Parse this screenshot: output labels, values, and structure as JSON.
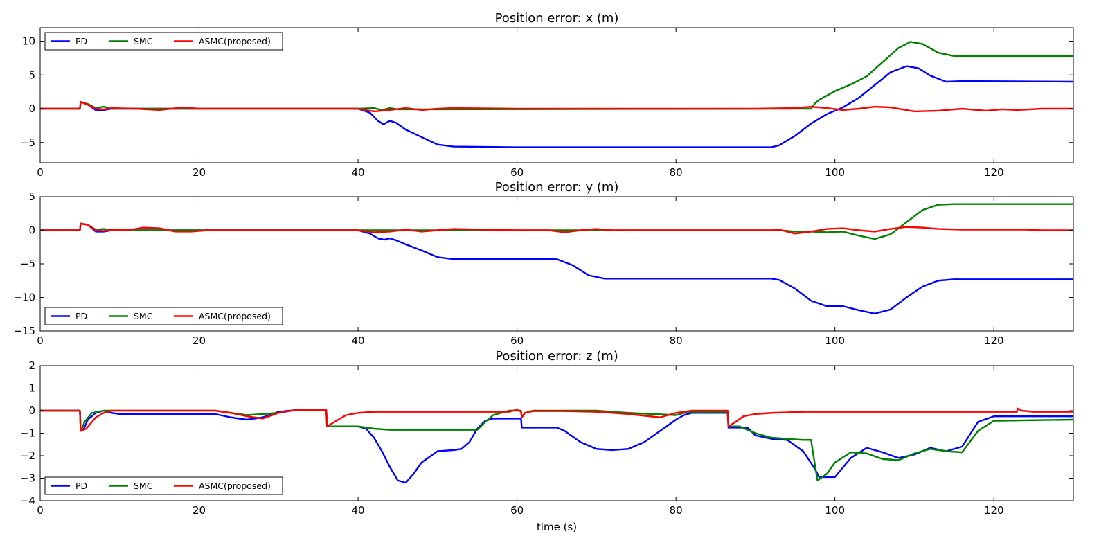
{
  "chart_data": [
    {
      "type": "line",
      "title": "Position error: x (m)",
      "xlabel": "",
      "ylabel": "",
      "xlim": [
        0,
        130
      ],
      "ylim": [
        -8,
        12
      ],
      "xticks": [
        0,
        20,
        40,
        60,
        80,
        100,
        120
      ],
      "yticks": [
        -5,
        0,
        5,
        10
      ],
      "ytick_labels": [
        "−5",
        "0",
        "5",
        "10"
      ],
      "legend": "top-left",
      "series": [
        {
          "name": "PD",
          "color": "#0000ff",
          "x": [
            0,
            5,
            5.1,
            6,
            7,
            8,
            9,
            40,
            41.5,
            42.5,
            43.2,
            44,
            44.8,
            46,
            48,
            50,
            52,
            60,
            80,
            92,
            93,
            95,
            97,
            99,
            101,
            103,
            105,
            107,
            109,
            110.5,
            112,
            114,
            116,
            130
          ],
          "y": [
            0,
            0,
            1,
            0.6,
            -0.2,
            -0.2,
            0,
            0,
            -0.6,
            -1.8,
            -2.3,
            -1.8,
            -2.1,
            -3.1,
            -4.2,
            -5.3,
            -5.6,
            -5.7,
            -5.7,
            -5.7,
            -5.4,
            -4,
            -2.2,
            -0.8,
            0.2,
            1.6,
            3.5,
            5.4,
            6.3,
            6,
            4.9,
            4,
            4.1,
            4
          ]
        },
        {
          "name": "SMC",
          "color": "#008000",
          "x": [
            0,
            5,
            5.1,
            6,
            7,
            8,
            9,
            40,
            42,
            43,
            44,
            45,
            97,
            97.5,
            98,
            100,
            102,
            104,
            106,
            108,
            109.5,
            111,
            113,
            115,
            130
          ],
          "y": [
            0,
            0,
            1,
            0.7,
            0.1,
            0.3,
            0,
            0,
            0.1,
            -0.2,
            0.1,
            -0.1,
            0,
            0.8,
            1.3,
            2.6,
            3.6,
            4.8,
            6.9,
            9,
            9.9,
            9.6,
            8.3,
            7.8,
            7.8
          ]
        },
        {
          "name": "ASMC(proposed)",
          "color": "#ff0000",
          "x": [
            0,
            5,
            5.1,
            6,
            7,
            8,
            9,
            12,
            15,
            18,
            20,
            22,
            40,
            42,
            44,
            46,
            48,
            50,
            52,
            60,
            80,
            90,
            95,
            97,
            99,
            101,
            103,
            105,
            107,
            110,
            113,
            116,
            119,
            121,
            123,
            126,
            130
          ],
          "y": [
            0,
            0,
            1,
            0.6,
            0,
            -0.1,
            0.1,
            0,
            -0.2,
            0.2,
            0,
            0,
            0,
            -0.4,
            -0.2,
            0.1,
            -0.2,
            0,
            0.1,
            0,
            0,
            0,
            0.1,
            0.3,
            0.1,
            -0.2,
            0,
            0.3,
            0.2,
            -0.4,
            -0.3,
            0,
            -0.3,
            -0.1,
            -0.2,
            0,
            0
          ]
        }
      ]
    },
    {
      "type": "line",
      "title": "Position error: y (m)",
      "xlabel": "",
      "ylabel": "",
      "xlim": [
        0,
        130
      ],
      "ylim": [
        -15,
        5
      ],
      "xticks": [
        0,
        20,
        40,
        60,
        80,
        100,
        120
      ],
      "yticks": [
        -15,
        -10,
        -5,
        0,
        5
      ],
      "ytick_labels": [
        "−15",
        "−10",
        "−5",
        "0",
        "5"
      ],
      "legend": "bottom-left",
      "series": [
        {
          "name": "PD",
          "color": "#0000ff",
          "x": [
            0,
            5,
            5.1,
            6,
            7,
            8,
            9,
            40,
            41.5,
            42.5,
            43.3,
            44,
            44.8,
            46,
            48,
            50,
            52,
            60,
            65,
            67,
            69,
            71,
            80,
            92,
            93,
            95,
            97,
            99,
            101,
            103,
            105,
            107,
            109,
            111,
            113,
            115,
            130
          ],
          "y": [
            0,
            0,
            1,
            0.8,
            -0.2,
            -0.2,
            0,
            0,
            -0.5,
            -1.2,
            -1.4,
            -1.2,
            -1.5,
            -2.1,
            -3,
            -4,
            -4.3,
            -4.3,
            -4.3,
            -5.2,
            -6.7,
            -7.2,
            -7.2,
            -7.2,
            -7.4,
            -8.7,
            -10.5,
            -11.3,
            -11.3,
            -11.9,
            -12.4,
            -11.8,
            -10,
            -8.4,
            -7.5,
            -7.3,
            -7.3
          ]
        },
        {
          "name": "SMC",
          "color": "#008000",
          "x": [
            0,
            5,
            5.1,
            6,
            7,
            8,
            9,
            93,
            95,
            97,
            99,
            101,
            103,
            105,
            107,
            109,
            111,
            113,
            115,
            130
          ],
          "y": [
            0,
            0,
            1,
            0.8,
            0.1,
            0.2,
            0,
            0,
            -0.2,
            -0.2,
            -0.3,
            -0.2,
            -0.8,
            -1.3,
            -0.6,
            1.2,
            3,
            3.8,
            3.9,
            3.9
          ]
        },
        {
          "name": "ASMC(proposed)",
          "color": "#ff0000",
          "x": [
            0,
            5,
            5.1,
            6,
            7,
            8,
            9,
            11,
            13,
            15,
            17,
            19,
            21,
            40,
            42,
            44,
            46,
            48,
            50,
            52,
            60,
            64,
            66,
            68,
            70,
            72,
            80,
            92,
            93,
            95,
            97,
            99,
            101,
            103,
            105,
            107,
            109,
            111,
            113,
            116,
            120,
            124,
            126,
            130
          ],
          "y": [
            0,
            0,
            1,
            0.8,
            0,
            -0.1,
            0.1,
            0,
            0.4,
            0.3,
            -0.2,
            -0.2,
            0,
            0,
            -0.3,
            -0.2,
            0.1,
            -0.2,
            0,
            0.2,
            0,
            0,
            -0.3,
            0,
            0.2,
            0,
            0,
            0,
            0.1,
            -0.5,
            -0.2,
            0.2,
            0.3,
            0,
            -0.2,
            0.2,
            0.5,
            0.4,
            0.2,
            0.1,
            0.1,
            0.1,
            0,
            0
          ]
        }
      ]
    },
    {
      "type": "line",
      "title": "Position error: z (m)",
      "xlabel": "time (s)",
      "ylabel": "",
      "xlim": [
        0,
        130
      ],
      "ylim": [
        -4,
        2
      ],
      "xticks": [
        0,
        20,
        40,
        60,
        80,
        100,
        120
      ],
      "yticks": [
        -4,
        -3,
        -2,
        -1,
        0,
        1,
        2
      ],
      "ytick_labels": [
        "−4",
        "−3",
        "−2",
        "−1",
        "0",
        "1",
        "2"
      ],
      "legend": "bottom-left",
      "series": [
        {
          "name": "PD",
          "color": "#0000ff",
          "x": [
            0,
            5,
            5.1,
            5.5,
            6,
            7,
            8,
            9,
            10,
            12,
            22,
            24,
            26,
            28,
            30,
            32,
            36,
            36.1,
            38,
            40,
            41,
            42,
            43,
            44,
            45,
            46,
            47,
            48,
            50,
            52,
            53,
            54,
            55,
            56,
            57,
            58,
            60,
            60.5,
            60.6,
            64,
            65,
            66,
            68,
            70,
            72,
            74,
            76,
            78,
            80,
            81,
            82,
            86.5,
            86.6,
            89,
            90,
            92,
            94,
            96,
            97.5,
            98,
            100,
            102,
            104,
            106,
            108,
            110,
            112,
            114,
            116,
            118,
            120,
            122,
            130
          ],
          "y": [
            0,
            0,
            -0.9,
            -0.8,
            -0.4,
            -0.1,
            0,
            -0.1,
            -0.15,
            -0.15,
            -0.15,
            -0.3,
            -0.4,
            -0.3,
            -0.05,
            0.02,
            0.02,
            -0.7,
            -0.7,
            -0.7,
            -0.8,
            -1.2,
            -1.8,
            -2.5,
            -3.1,
            -3.2,
            -2.8,
            -2.3,
            -1.8,
            -1.75,
            -1.7,
            -1.4,
            -0.8,
            -0.45,
            -0.35,
            -0.35,
            -0.35,
            -0.35,
            -0.75,
            -0.75,
            -0.75,
            -0.9,
            -1.4,
            -1.7,
            -1.75,
            -1.7,
            -1.4,
            -0.9,
            -0.4,
            -0.2,
            -0.1,
            -0.1,
            -0.75,
            -0.75,
            -1.1,
            -1.25,
            -1.3,
            -1.8,
            -2.6,
            -2.95,
            -2.95,
            -2.1,
            -1.65,
            -1.85,
            -2.1,
            -1.95,
            -1.65,
            -1.8,
            -1.6,
            -0.5,
            -0.25,
            -0.25,
            -0.25
          ]
        },
        {
          "name": "SMC",
          "color": "#008000",
          "x": [
            0,
            5,
            5.1,
            5.6,
            6.5,
            8,
            10,
            22,
            26,
            30,
            32,
            36,
            36.1,
            40,
            42,
            44,
            46,
            50,
            55,
            56,
            57,
            58,
            59,
            60.5,
            60.6,
            61,
            62,
            64,
            66,
            70,
            74,
            80,
            81,
            82,
            86.5,
            86.6,
            88,
            90,
            92,
            94,
            96,
            97,
            97.3,
            97.8,
            99,
            100,
            102,
            104,
            106,
            108,
            110,
            112,
            114,
            116,
            118,
            120,
            130
          ],
          "y": [
            0,
            0,
            -0.9,
            -0.5,
            -0.1,
            0,
            0,
            0,
            -0.2,
            -0.1,
            0.02,
            0.02,
            -0.7,
            -0.7,
            -0.8,
            -0.85,
            -0.85,
            -0.85,
            -0.85,
            -0.5,
            -0.2,
            -0.1,
            0,
            0,
            -0.3,
            -0.1,
            0,
            0,
            0,
            0,
            -0.1,
            -0.2,
            -0.1,
            -0.05,
            -0.05,
            -0.7,
            -0.7,
            -1,
            -1.2,
            -1.25,
            -1.3,
            -1.3,
            -2,
            -3.1,
            -2.8,
            -2.3,
            -1.85,
            -1.9,
            -2.15,
            -2.2,
            -1.9,
            -1.7,
            -1.8,
            -1.85,
            -0.9,
            -0.45,
            -0.4
          ]
        },
        {
          "name": "ASMC(proposed)",
          "color": "#ff0000",
          "x": [
            0,
            5,
            5.1,
            5.8,
            7,
            8,
            9,
            10,
            22,
            24,
            26,
            28,
            30,
            32,
            36,
            36.1,
            37.5,
            38.5,
            40,
            42,
            45,
            50,
            55,
            59,
            60,
            60.5,
            60.6,
            61,
            62,
            66,
            70,
            74,
            78,
            80,
            81,
            82,
            86.5,
            86.6,
            87.5,
            88.5,
            90,
            92,
            96,
            100,
            110,
            115,
            120,
            122.9,
            123,
            123.5,
            125,
            127,
            130
          ],
          "y": [
            0,
            0,
            -0.9,
            -0.8,
            -0.3,
            -0.1,
            0,
            0,
            0,
            -0.1,
            -0.25,
            -0.35,
            -0.1,
            0.02,
            0.02,
            -0.7,
            -0.4,
            -0.2,
            -0.1,
            -0.05,
            -0.05,
            -0.05,
            -0.05,
            -0.05,
            0.05,
            -0.05,
            -0.3,
            -0.1,
            -0.02,
            -0.02,
            -0.05,
            -0.15,
            -0.3,
            -0.1,
            -0.05,
            0,
            0,
            -0.7,
            -0.5,
            -0.25,
            -0.15,
            -0.1,
            -0.05,
            -0.05,
            -0.05,
            -0.05,
            -0.05,
            -0.05,
            0.1,
            0,
            -0.05,
            -0.05,
            -0.05
          ]
        }
      ]
    }
  ]
}
